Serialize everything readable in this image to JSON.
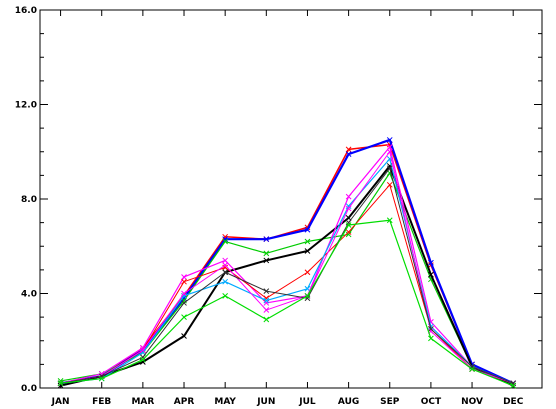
{
  "chart_data": {
    "type": "line",
    "title": "",
    "xlabel": "",
    "ylabel": "",
    "categories": [
      "JAN",
      "FEB",
      "MAR",
      "APR",
      "MAY",
      "JUN",
      "JUL",
      "AUG",
      "SEP",
      "OCT",
      "NOV",
      "DEC"
    ],
    "xlim": [
      0.5,
      12.7
    ],
    "ylim": [
      0,
      16
    ],
    "yticks": [
      {
        "value": 0,
        "label": "0.0"
      },
      {
        "value": 4,
        "label": "4.0"
      },
      {
        "value": 8,
        "label": "8.0"
      },
      {
        "value": 12,
        "label": "12.0"
      },
      {
        "value": 16,
        "label": "16.0"
      }
    ],
    "grid": false,
    "legend": "none",
    "series": [
      {
        "color": "#ff0000",
        "width": 1.5,
        "values": [
          0.2,
          0.5,
          1.7,
          3.9,
          6.4,
          6.3,
          6.8,
          10.1,
          10.3,
          5.2,
          1.0,
          0.2
        ]
      },
      {
        "color": "#0000ff",
        "width": 2.2,
        "values": [
          0.2,
          0.5,
          1.6,
          3.8,
          6.3,
          6.3,
          6.7,
          9.9,
          10.5,
          5.3,
          1.0,
          0.2
        ]
      },
      {
        "color": "#00cc00",
        "width": 1.2,
        "values": [
          0.3,
          0.6,
          1.5,
          3.7,
          6.2,
          5.7,
          6.2,
          6.5,
          9.1,
          4.6,
          0.9,
          0.2
        ]
      },
      {
        "color": "#000000",
        "width": 2.0,
        "values": [
          0.1,
          0.5,
          1.1,
          2.2,
          4.9,
          5.4,
          5.8,
          7.2,
          9.4,
          4.8,
          0.9,
          0.1
        ]
      },
      {
        "color": "#ff00ff",
        "width": 1.2,
        "values": [
          0.2,
          0.6,
          1.7,
          4.7,
          5.4,
          3.6,
          3.9,
          8.1,
          10.2,
          2.8,
          0.9,
          0.2
        ]
      },
      {
        "color": "#ff0000",
        "width": 1.0,
        "values": [
          0.2,
          0.5,
          1.6,
          4.5,
          5.1,
          3.8,
          4.9,
          6.6,
          8.6,
          2.5,
          0.8,
          0.2
        ]
      },
      {
        "color": "#00aaff",
        "width": 1.2,
        "values": [
          0.2,
          0.4,
          1.5,
          3.9,
          4.5,
          3.7,
          4.2,
          7.7,
          9.7,
          2.6,
          0.9,
          0.2
        ]
      },
      {
        "color": "#ff00ff",
        "width": 1.0,
        "values": [
          0.2,
          0.5,
          1.6,
          4.0,
          5.2,
          3.3,
          3.9,
          7.6,
          10.0,
          2.4,
          0.8,
          0.2
        ]
      },
      {
        "color": "#333333",
        "width": 1.0,
        "values": [
          0.2,
          0.5,
          1.3,
          3.6,
          4.9,
          4.1,
          3.8,
          7.0,
          9.3,
          2.5,
          0.9,
          0.2
        ]
      },
      {
        "color": "#00dd00",
        "width": 1.2,
        "values": [
          0.2,
          0.4,
          1.2,
          3.0,
          3.9,
          2.9,
          3.9,
          6.9,
          7.1,
          2.1,
          0.8,
          0.1
        ]
      }
    ]
  }
}
